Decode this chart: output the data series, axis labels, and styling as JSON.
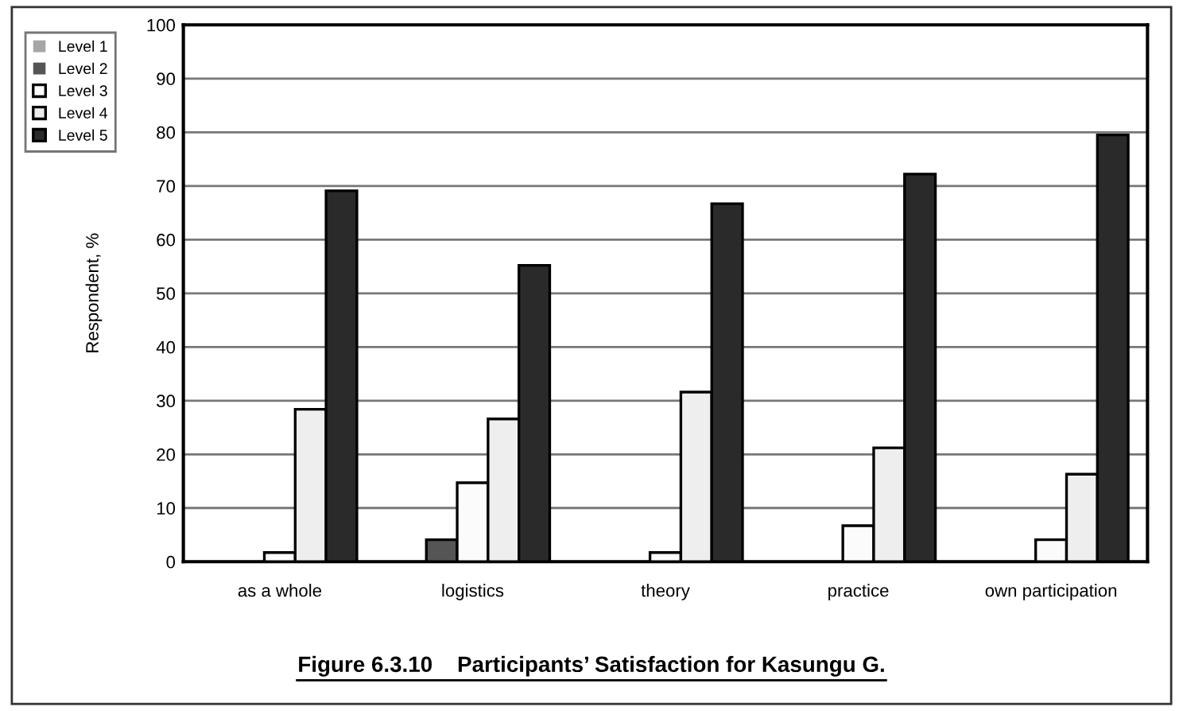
{
  "chart_data": {
    "type": "bar",
    "title": "Figure 6.3.10    Participants’ Satisfaction for Kasungu G.",
    "ylabel": "Respondent, %",
    "categories": [
      "as a whole",
      "logistics",
      "theory",
      "practice",
      "own participation"
    ],
    "series": [
      {
        "name": "Level 1",
        "color": "#a6a6a6",
        "values": [
          0,
          0,
          0,
          0,
          0
        ]
      },
      {
        "name": "Level 2",
        "color": "#555555",
        "values": [
          0,
          4.1,
          0,
          0,
          0
        ]
      },
      {
        "name": "Level 3",
        "color": "#fbfbfb",
        "values": [
          1.7,
          14.7,
          1.7,
          6.7,
          4.1
        ]
      },
      {
        "name": "Level 4",
        "color": "#eeeeee",
        "values": [
          28.4,
          26.6,
          31.6,
          21.2,
          16.3
        ]
      },
      {
        "name": "Level 5",
        "color": "#2a2a2a",
        "values": [
          69.1,
          55.2,
          66.7,
          72.2,
          79.5
        ]
      }
    ],
    "ylim": [
      0,
      100
    ],
    "yticks": [
      0,
      10,
      20,
      30,
      40,
      50,
      60,
      70,
      80,
      90,
      100
    ],
    "grid": "y",
    "legend": "top left"
  }
}
